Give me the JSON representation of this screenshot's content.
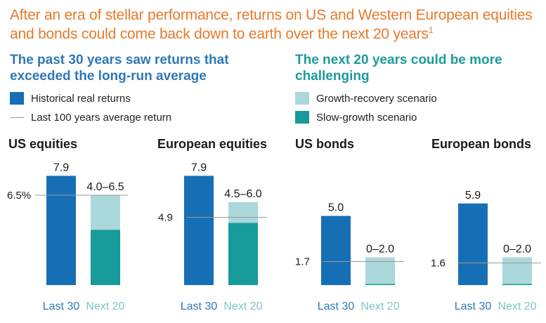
{
  "headline": {
    "text": "After an era of stellar performance, returns on US and Western European equities and bonds could come back down to earth over the next 20 years",
    "footnote": "1"
  },
  "left_subhead": "The past 30 years saw returns that exceeded the long-run average",
  "right_subhead": "The next 20 years could be more challenging",
  "colors": {
    "historical": "#166fb5",
    "growth_recovery": "#abd8da",
    "slow_growth": "#169a9a",
    "reference_line": "#9a9a9a",
    "last30_label": "#2f78b5",
    "next20_label": "#7dc4c8"
  },
  "legend": {
    "historical": "Historical real returns",
    "average": "Last 100 years average return",
    "growth_recovery": "Growth-recovery scenario",
    "slow_growth": "Slow-growth scenario"
  },
  "chart_data": [
    {
      "type": "bar",
      "title": "US equities",
      "categories": [
        "Last 30",
        "Next 20"
      ],
      "historical_value": 7.9,
      "historical_label": "7.9",
      "scenario_range": [
        4.0,
        6.5
      ],
      "scenario_label": "4.0–6.5",
      "average_value": 6.5,
      "average_label": "6.5%"
    },
    {
      "type": "bar",
      "title": "European equities",
      "categories": [
        "Last 30",
        "Next 20"
      ],
      "historical_value": 7.9,
      "historical_label": "7.9",
      "scenario_range": [
        4.5,
        6.0
      ],
      "scenario_label": "4.5–6.0",
      "average_value": 4.9,
      "average_label": "4.9"
    },
    {
      "type": "bar",
      "title": "US bonds",
      "categories": [
        "Last 30",
        "Next 20"
      ],
      "historical_value": 5.0,
      "historical_label": "5.0",
      "scenario_range": [
        0,
        2.0
      ],
      "scenario_label": "0–2.0",
      "average_value": 1.7,
      "average_label": "1.7"
    },
    {
      "type": "bar",
      "title": "European bonds",
      "categories": [
        "Last 30",
        "Next 20"
      ],
      "historical_value": 5.9,
      "historical_label": "5.9",
      "scenario_range": [
        0,
        2.0
      ],
      "scenario_label": "0–2.0",
      "average_value": 1.6,
      "average_label": "1.6"
    }
  ]
}
